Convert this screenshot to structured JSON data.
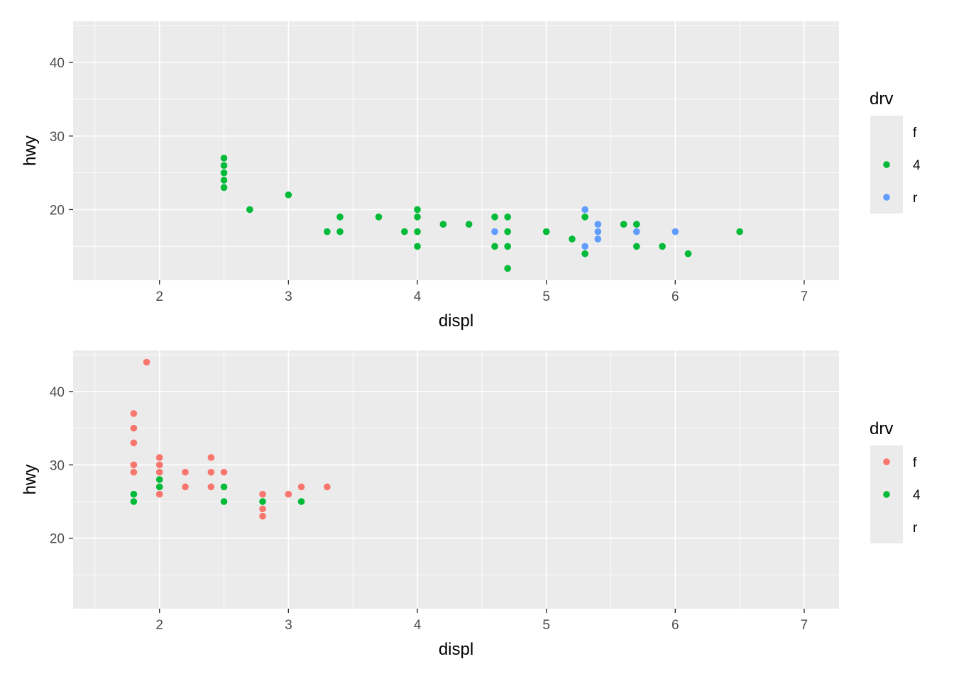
{
  "colors": {
    "panel_bg": "#EBEBEB",
    "grid": "#FFFFFF",
    "f": "#F8766D",
    "4": "#00BA38",
    "r": "#619CFF"
  },
  "chart_data": [
    {
      "type": "scatter",
      "xlabel": "displ",
      "ylabel": "hwy",
      "xlim": [
        1.33,
        7.27
      ],
      "ylim": [
        10.4,
        45.6
      ],
      "x_ticks": [
        2,
        3,
        4,
        5,
        6,
        7
      ],
      "y_ticks": [
        20,
        30,
        40
      ],
      "grid": true,
      "legend": {
        "title": "drv",
        "placement": "right",
        "keys": [
          {
            "label": "f",
            "drawn": false
          },
          {
            "label": "4",
            "drawn": true
          },
          {
            "label": "r",
            "drawn": true
          }
        ]
      },
      "series": [
        {
          "name": "4",
          "points": [
            [
              2.5,
              27
            ],
            [
              2.5,
              26
            ],
            [
              2.5,
              25
            ],
            [
              2.5,
              24
            ],
            [
              2.5,
              23
            ],
            [
              2.7,
              20
            ],
            [
              3.0,
              22
            ],
            [
              3.3,
              17
            ],
            [
              3.4,
              19
            ],
            [
              3.4,
              17
            ],
            [
              3.7,
              19
            ],
            [
              3.9,
              17
            ],
            [
              4.0,
              20
            ],
            [
              4.0,
              19
            ],
            [
              4.0,
              17
            ],
            [
              4.0,
              15
            ],
            [
              4.2,
              18
            ],
            [
              4.4,
              18
            ],
            [
              4.6,
              19
            ],
            [
              4.6,
              15
            ],
            [
              4.7,
              19
            ],
            [
              4.7,
              17
            ],
            [
              4.7,
              15
            ],
            [
              4.7,
              12
            ],
            [
              5.0,
              17
            ],
            [
              5.2,
              16
            ],
            [
              5.3,
              19
            ],
            [
              5.3,
              14
            ],
            [
              5.6,
              18
            ],
            [
              5.7,
              18
            ],
            [
              5.7,
              15
            ],
            [
              5.9,
              15
            ],
            [
              6.1,
              14
            ],
            [
              6.5,
              17
            ]
          ]
        },
        {
          "name": "r",
          "points": [
            [
              4.6,
              17
            ],
            [
              5.3,
              20
            ],
            [
              5.3,
              15
            ],
            [
              5.4,
              18
            ],
            [
              5.4,
              17
            ],
            [
              5.4,
              16
            ],
            [
              5.7,
              17
            ],
            [
              6.0,
              17
            ]
          ]
        }
      ]
    },
    {
      "type": "scatter",
      "xlabel": "displ",
      "ylabel": "hwy",
      "xlim": [
        1.33,
        7.27
      ],
      "ylim": [
        10.4,
        45.6
      ],
      "x_ticks": [
        2,
        3,
        4,
        5,
        6,
        7
      ],
      "y_ticks": [
        20,
        30,
        40
      ],
      "grid": true,
      "legend": {
        "title": "drv",
        "placement": "right",
        "keys": [
          {
            "label": "f",
            "drawn": true
          },
          {
            "label": "4",
            "drawn": true
          },
          {
            "label": "r",
            "drawn": false
          }
        ]
      },
      "series": [
        {
          "name": "f",
          "points": [
            [
              1.8,
              37
            ],
            [
              1.8,
              35
            ],
            [
              1.8,
              33
            ],
            [
              1.8,
              30
            ],
            [
              1.8,
              29
            ],
            [
              1.9,
              44
            ],
            [
              2.0,
              31
            ],
            [
              2.0,
              30
            ],
            [
              2.0,
              29
            ],
            [
              2.0,
              27
            ],
            [
              2.0,
              26
            ],
            [
              2.2,
              29
            ],
            [
              2.2,
              27
            ],
            [
              2.4,
              31
            ],
            [
              2.4,
              29
            ],
            [
              2.4,
              27
            ],
            [
              2.5,
              29
            ],
            [
              2.8,
              26
            ],
            [
              2.8,
              24
            ],
            [
              2.8,
              23
            ],
            [
              3.0,
              26
            ],
            [
              3.1,
              27
            ],
            [
              3.3,
              27
            ]
          ]
        },
        {
          "name": "4",
          "points": [
            [
              1.8,
              26
            ],
            [
              1.8,
              25
            ],
            [
              2.0,
              28
            ],
            [
              2.0,
              27
            ],
            [
              2.5,
              27
            ],
            [
              2.5,
              25
            ],
            [
              2.8,
              25
            ],
            [
              3.1,
              25
            ]
          ]
        }
      ]
    }
  ]
}
